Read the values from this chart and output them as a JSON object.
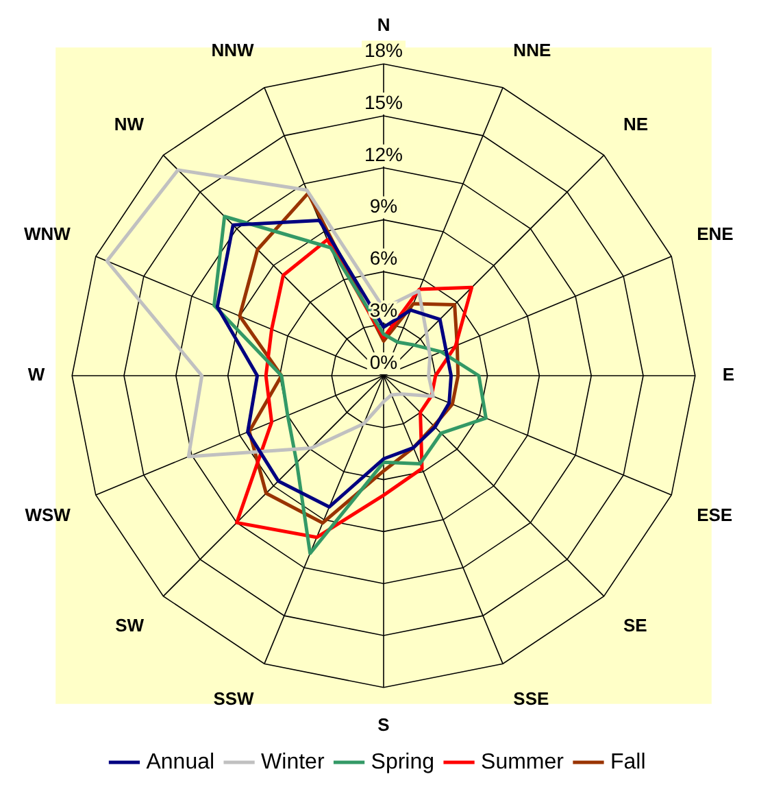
{
  "chart_data": {
    "type": "radar",
    "categories": [
      "N",
      "NNE",
      "NE",
      "ENE",
      "E",
      "ESE",
      "SE",
      "SSE",
      "S",
      "SSW",
      "SW",
      "WSW",
      "W",
      "WNW",
      "NW",
      "NNW"
    ],
    "series": [
      {
        "name": "Annual",
        "color": "#000080",
        "values": [
          2.8,
          4.1,
          4.6,
          3.9,
          3.9,
          4.1,
          4.2,
          4.5,
          4.8,
          8.2,
          8.6,
          8.5,
          7.3,
          10.4,
          12.3,
          9.7
        ]
      },
      {
        "name": "Winter",
        "color": "#c0c0c0",
        "values": [
          3.9,
          5.3,
          3.5,
          2.9,
          2.6,
          3.1,
          1.5,
          1.2,
          1.5,
          3,
          5.9,
          12.2,
          10.5,
          17.3,
          16.8,
          11.6
        ]
      },
      {
        "name": "Spring",
        "color": "#339966",
        "values": [
          2.4,
          2.1,
          2.5,
          3.6,
          5.5,
          6.4,
          4.7,
          5.5,
          5,
          11.1,
          7.1,
          6,
          5.9,
          10.6,
          13,
          8
        ]
      },
      {
        "name": "Summer",
        "color": "#ff0000",
        "values": [
          2.2,
          5.4,
          7.2,
          4.5,
          3,
          3,
          3,
          5.8,
          6.9,
          10.1,
          12,
          7,
          6.8,
          7,
          8.2,
          8.5
        ]
      },
      {
        "name": "Fall",
        "color": "#993300",
        "values": [
          2,
          4.5,
          5.8,
          4.6,
          4.3,
          4.3,
          4.1,
          4.5,
          5.5,
          9.2,
          9.6,
          8.4,
          5.9,
          9,
          10.3,
          11.4
        ]
      }
    ],
    "ylim": [
      0,
      18
    ],
    "yticks": [
      {
        "value": 0,
        "label": "0%"
      },
      {
        "value": 3,
        "label": "3%"
      },
      {
        "value": 6,
        "label": "6%"
      },
      {
        "value": 9,
        "label": "9%"
      },
      {
        "value": 12,
        "label": "12%"
      },
      {
        "value": 15,
        "label": "15%"
      },
      {
        "value": 18,
        "label": "18%"
      }
    ],
    "grid": true,
    "legend": "bottom",
    "marker": "none",
    "line_style": "solid"
  }
}
